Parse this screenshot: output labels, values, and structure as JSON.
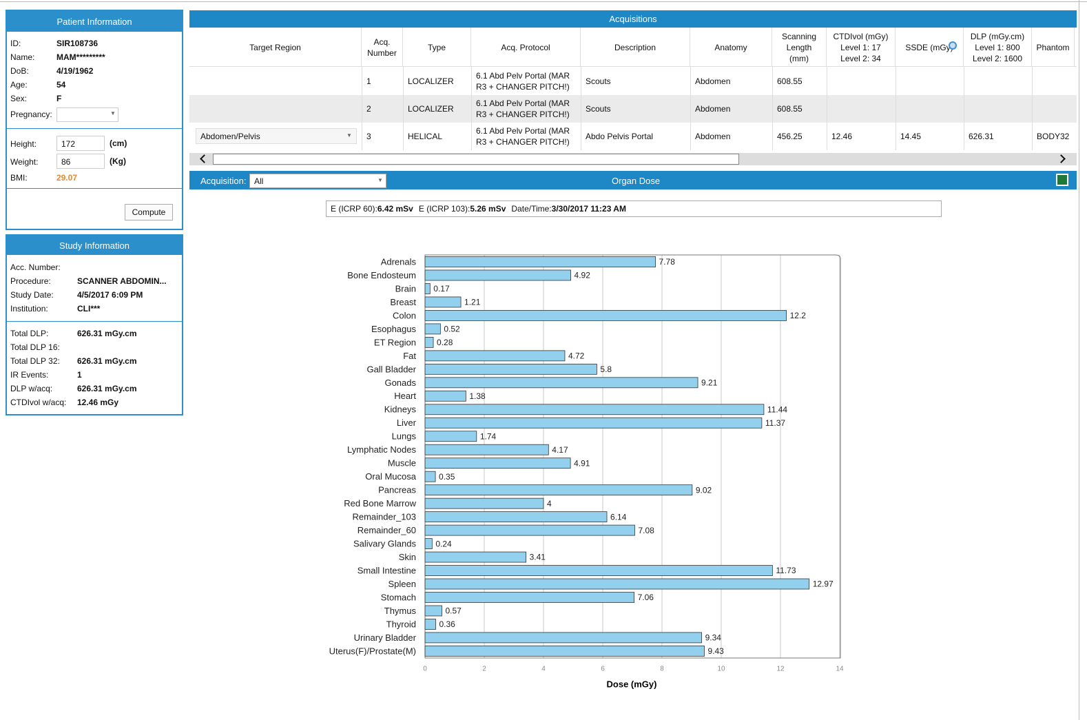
{
  "patient": {
    "title": "Patient Information",
    "fields": [
      {
        "label": "ID:",
        "value": "SIR108736"
      },
      {
        "label": "Name:",
        "value": "MAM*********"
      },
      {
        "label": "DoB:",
        "value": "4/19/1962"
      },
      {
        "label": "Age:",
        "value": "54"
      },
      {
        "label": "Sex:",
        "value": "F"
      }
    ],
    "pregnancy": {
      "label": "Pregnancy:"
    },
    "height": {
      "label": "Height:",
      "value": "172",
      "unit": "(cm)"
    },
    "weight": {
      "label": "Weight:",
      "value": "86",
      "unit": "(Kg)"
    },
    "bmi": {
      "label": "BMI:",
      "value": "29.07"
    },
    "compute": "Compute"
  },
  "study": {
    "title": "Study Information",
    "fields": [
      {
        "label": "Acc. Number:"
      },
      {
        "label": "Procedure:",
        "value": "SCANNER ABDOMIN..."
      },
      {
        "label": "Study Date:",
        "value": "4/5/2017 6:09 PM"
      },
      {
        "label": "Institution:",
        "value": "CLI***"
      }
    ],
    "dose_fields": [
      {
        "label": "Total DLP:",
        "value": "626.31 mGy.cm"
      },
      {
        "label": "Total DLP 16:"
      },
      {
        "label": "Total DLP 32:",
        "value": "626.31 mGy.cm"
      },
      {
        "label": "IR Events:",
        "value": "1"
      },
      {
        "label": "DLP w/acq:",
        "value": "626.31 mGy.cm"
      },
      {
        "label": "CTDIvol w/acq:",
        "value": "12.46 mGy"
      }
    ]
  },
  "acquisitions": {
    "title": "Acquisitions",
    "headers": [
      [
        "Target Region"
      ],
      [
        "Acq.",
        "Number"
      ],
      [
        "Type"
      ],
      [
        "Acq. Protocol"
      ],
      [
        "Description"
      ],
      [
        "Anatomy"
      ],
      [
        "Scanning",
        "Length",
        "(mm)"
      ],
      [
        "CTDIvol (mGy)",
        "Level 1: 17",
        "Level 2: 34"
      ],
      [
        "SSDE (mGy)"
      ],
      [
        "DLP (mGy.cm)",
        "Level 1: 800",
        "Level 2: 1600"
      ],
      [
        "Phantom"
      ]
    ],
    "rows": [
      [
        null,
        "1",
        "LOCALIZER",
        "6.1 Abd Pelv Portal (MAR R3 + CHANGER PITCH!)",
        "Scouts",
        "Abdomen",
        "608.55",
        null,
        null,
        null,
        null
      ],
      [
        null,
        "2",
        "LOCALIZER",
        "6.1 Abd Pelv Portal (MAR R3 + CHANGER PITCH!)",
        "Scouts",
        "Abdomen",
        "608.55",
        null,
        null,
        null,
        null
      ],
      [
        "Abdomen/Pelvis",
        "3",
        "HELICAL",
        "6.1 Abd Pelv Portal (MAR R3 + CHANGER PITCH!)",
        "Abdo Pelvis Portal",
        "Abdomen",
        "456.25",
        "12.46",
        "14.45",
        "626.31",
        "BODY32"
      ]
    ]
  },
  "organ_dose": {
    "title": "Organ Dose",
    "acquisition_label": "Acquisition:",
    "acquisition_value": "All",
    "summary": [
      {
        "label": "E (ICRP 60):",
        "value": "6.42 mSv"
      },
      {
        "label": "E (ICRP 103):",
        "value": "5.26 mSv"
      },
      {
        "label": "Date/Time:",
        "value": "3/30/2017 11:23 AM"
      }
    ]
  },
  "chart_data": {
    "type": "bar",
    "orientation": "horizontal",
    "categories": [
      "Adrenals",
      "Bone Endosteum",
      "Brain",
      "Breast",
      "Colon",
      "Esophagus",
      "ET Region",
      "Fat",
      "Gall Bladder",
      "Gonads",
      "Heart",
      "Kidneys",
      "Liver",
      "Lungs",
      "Lymphatic Nodes",
      "Muscle",
      "Oral Mucosa",
      "Pancreas",
      "Red Bone Marrow",
      "Remainder_103",
      "Remainder_60",
      "Salivary Glands",
      "Skin",
      "Small Intestine",
      "Spleen",
      "Stomach",
      "Thymus",
      "Thyroid",
      "Urinary Bladder",
      "Uterus(F)/Prostate(M)"
    ],
    "values": [
      7.78,
      4.92,
      0.17,
      1.21,
      12.2,
      0.52,
      0.28,
      4.72,
      5.8,
      9.21,
      1.38,
      11.44,
      11.37,
      1.74,
      4.17,
      4.91,
      0.35,
      9.02,
      4,
      6.14,
      7.08,
      0.24,
      3.41,
      11.73,
      12.97,
      7.06,
      0.57,
      0.36,
      9.34,
      9.43
    ],
    "color": "#92d0ee",
    "xlabel": "Dose (mGy)",
    "xlim": [
      0,
      14
    ],
    "xticks": [
      0,
      2,
      4,
      6,
      8,
      10,
      12,
      14
    ],
    "grid": true
  }
}
